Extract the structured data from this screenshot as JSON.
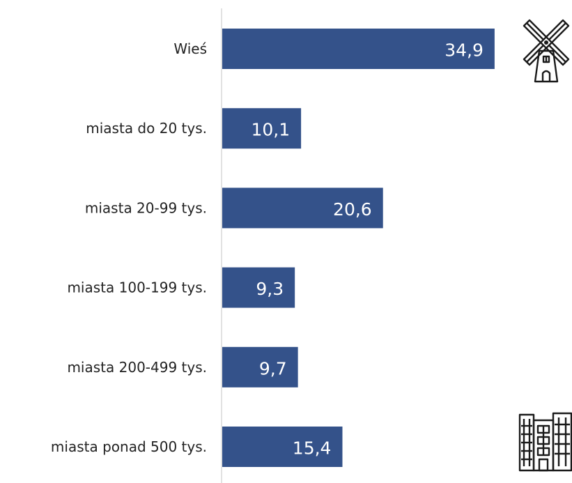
{
  "chart_data": {
    "type": "bar",
    "orientation": "horizontal",
    "categories": [
      "Wieś",
      "miasta do 20 tys.",
      "miasta 20-99 tys.",
      "miasta 100-199 tys.",
      "miasta 200-499 tys.",
      "miasta ponad 500 tys."
    ],
    "values": [
      34.9,
      10.1,
      20.6,
      9.3,
      9.7,
      15.4
    ],
    "value_labels": [
      "34,9",
      "10,1",
      "20,6",
      "9,3",
      "9,7",
      "15,4"
    ],
    "title": "",
    "xlabel": "",
    "ylabel": "",
    "xlim": [
      0,
      35
    ],
    "grid": false,
    "legend": "none"
  },
  "colors": {
    "bar": "#34528a",
    "axis": "#d9d9d9",
    "label_text": "#222222",
    "value_text": "#ffffff"
  },
  "icons": {
    "top": "windmill-icon",
    "bottom": "apartment-building-icon"
  }
}
